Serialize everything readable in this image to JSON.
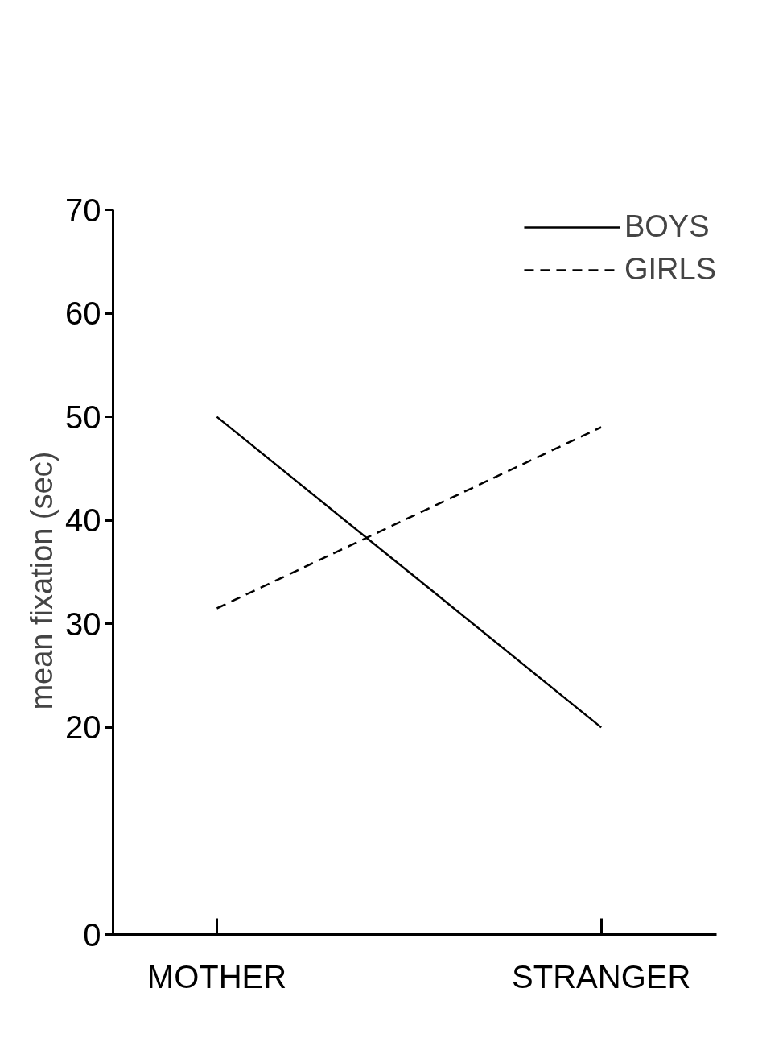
{
  "chart_data": {
    "type": "line",
    "ylabel": "mean  fixation  (sec)",
    "categories": [
      "MOTHER",
      "STRANGER"
    ],
    "series": [
      {
        "name": "BOYS",
        "color": "#000000",
        "line_style": "solid",
        "values": [
          50,
          20
        ]
      },
      {
        "name": "GIRLS",
        "color": "#000000",
        "line_style": "dashed",
        "values": [
          31.5,
          49
        ]
      }
    ],
    "ylim": [
      0,
      70
    ],
    "yticks": [
      0,
      20,
      30,
      40,
      50,
      60,
      70
    ],
    "grid": false,
    "legend": "top right"
  }
}
